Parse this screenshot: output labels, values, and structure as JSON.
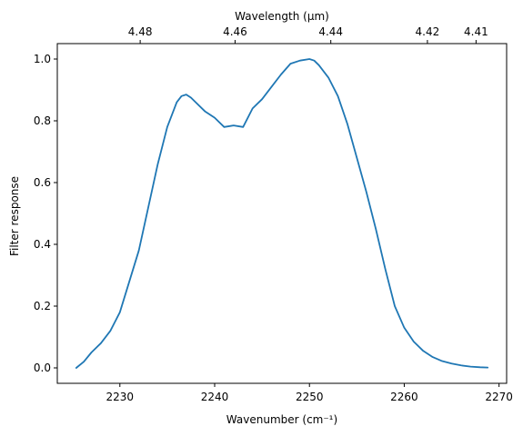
{
  "chart_data": {
    "type": "line",
    "xlabel": "Wavenumber (cm⁻¹)",
    "ylabel": "Filter response",
    "top_xlabel": "Wavelength (μm)",
    "xlim": [
      2223.4,
      2270.8
    ],
    "ylim": [
      -0.05,
      1.05
    ],
    "x_ticks": [
      2230,
      2240,
      2250,
      2260,
      2270
    ],
    "y_ticks": [
      0.0,
      0.2,
      0.4,
      0.6,
      0.8,
      1.0
    ],
    "top_ticks": [
      4.48,
      4.46,
      4.44,
      4.42,
      4.41
    ],
    "line_color": "#1f77b4",
    "series": [
      {
        "x": [
          2225.4,
          2226.2,
          2227.0,
          2228.0,
          2229.0,
          2230.0,
          2231.0,
          2232.0,
          2233.0,
          2234.0,
          2235.0,
          2236.0,
          2236.5,
          2237.0,
          2237.5,
          2238.0,
          2239.0,
          2240.0,
          2241.0,
          2242.0,
          2243.0,
          2244.0,
          2245.0,
          2246.0,
          2247.0,
          2248.0,
          2249.0,
          2250.0,
          2250.5,
          2251.0,
          2252.0,
          2253.0,
          2254.0,
          2255.0,
          2256.0,
          2257.0,
          2258.0,
          2259.0,
          2260.0,
          2261.0,
          2262.0,
          2263.0,
          2264.0,
          2265.0,
          2266.0,
          2267.0,
          2268.0,
          2268.8
        ],
        "y": [
          0.0,
          0.02,
          0.05,
          0.08,
          0.12,
          0.18,
          0.28,
          0.38,
          0.52,
          0.66,
          0.78,
          0.86,
          0.88,
          0.885,
          0.875,
          0.86,
          0.83,
          0.81,
          0.78,
          0.785,
          0.78,
          0.84,
          0.87,
          0.91,
          0.95,
          0.985,
          0.995,
          1.0,
          0.995,
          0.98,
          0.94,
          0.88,
          0.79,
          0.68,
          0.57,
          0.45,
          0.32,
          0.2,
          0.13,
          0.085,
          0.055,
          0.035,
          0.022,
          0.014,
          0.008,
          0.004,
          0.002,
          0.001
        ]
      }
    ]
  }
}
